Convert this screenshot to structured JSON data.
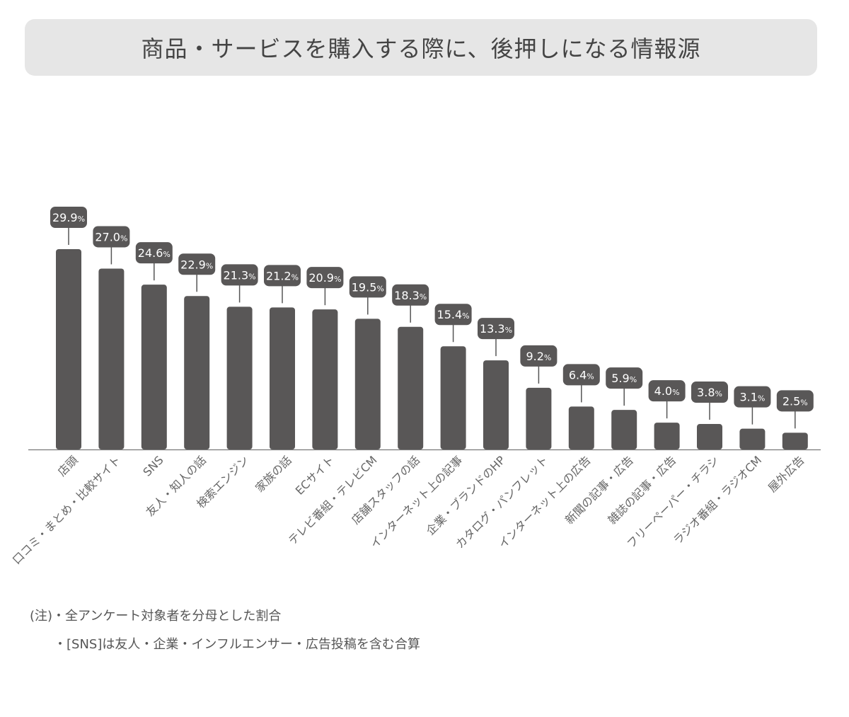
{
  "chart_data": {
    "type": "bar",
    "title": "商品・サービスを購入する際に、後押しになる情報源",
    "categories": [
      "店頭",
      "口コミ・まとめ・比較サイト",
      "SNS",
      "友人・知人の話",
      "検索エンジン",
      "家族の話",
      "ECサイト",
      "テレビ番組・テレビCM",
      "店舗スタッフの話",
      "インターネット上の記事",
      "企業・ブランドのHP",
      "カタログ・パンフレット",
      "インターネット上の広告",
      "新聞の記事・広告",
      "雑誌の記事・広告",
      "フリーペーパー・チラシ",
      "ラジオ番組・ラジオCM",
      "屋外広告"
    ],
    "values": [
      29.9,
      27.0,
      24.6,
      22.9,
      21.3,
      21.2,
      20.9,
      19.5,
      18.3,
      15.4,
      13.3,
      9.2,
      6.4,
      5.9,
      4.0,
      3.8,
      3.1,
      2.5
    ],
    "value_labels": [
      "29.9",
      "27.0",
      "24.6",
      "22.9",
      "21.3",
      "21.2",
      "20.9",
      "19.5",
      "18.3",
      "15.4",
      "13.3",
      "9.2",
      "6.4",
      "5.9",
      "4.0",
      "3.8",
      "3.1",
      "2.5"
    ],
    "unit": "%",
    "xlabel": "",
    "ylabel": "",
    "ylim": [
      0,
      30
    ],
    "bar_color": "#595757",
    "grid": false
  },
  "notes": {
    "line1": "(注)・全アンケート対象者を分母とした割合",
    "line2": "・[SNS]は友人・企業・インフルエンサー・広告投稿を含む合算"
  }
}
